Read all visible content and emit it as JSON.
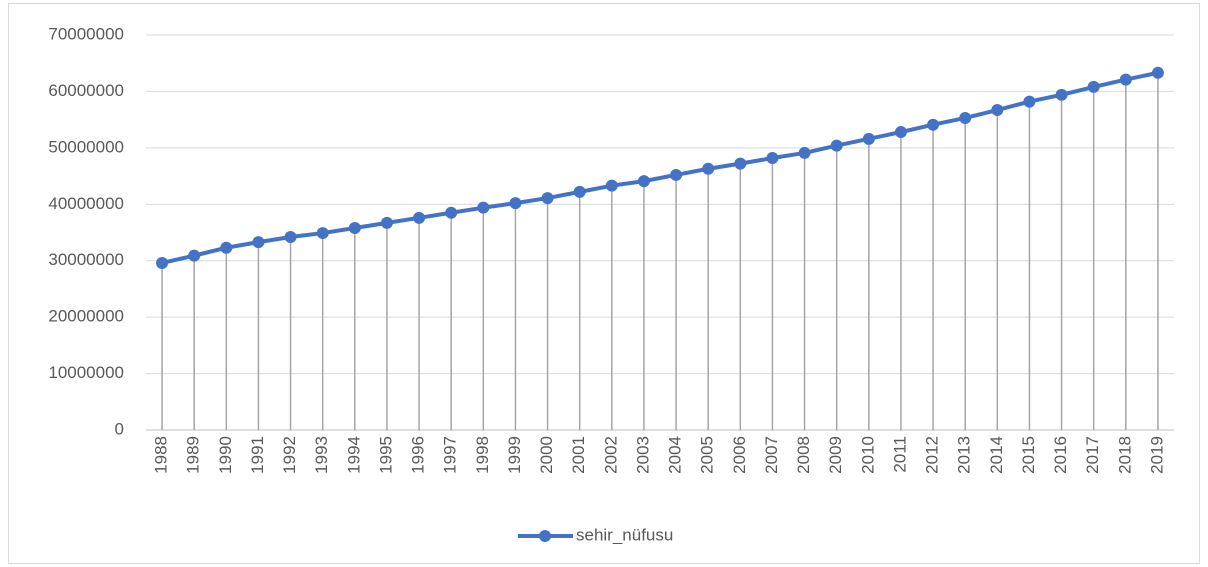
{
  "chart_data": {
    "type": "line",
    "categories": [
      "1988",
      "1989",
      "1990",
      "1991",
      "1992",
      "1993",
      "1994",
      "1995",
      "1996",
      "1997",
      "1998",
      "1999",
      "2000",
      "2001",
      "2002",
      "2003",
      "2004",
      "2005",
      "2006",
      "2007",
      "2008",
      "2009",
      "2010",
      "2011",
      "2012",
      "2013",
      "2014",
      "2015",
      "2016",
      "2017",
      "2018",
      "2019"
    ],
    "series": [
      {
        "name": "sehir_nüfusu",
        "color": "#4472c4",
        "values": [
          29600000,
          30900000,
          32300000,
          33300000,
          34200000,
          34900000,
          35800000,
          36700000,
          37600000,
          38500000,
          39400000,
          40200000,
          41100000,
          42200000,
          43300000,
          44100000,
          45200000,
          46300000,
          47200000,
          48200000,
          49100000,
          50400000,
          51600000,
          52800000,
          54100000,
          55300000,
          56700000,
          58200000,
          59400000,
          60800000,
          62100000,
          63300000
        ]
      }
    ],
    "ylim": [
      0,
      70000000
    ],
    "yticks": [
      0,
      10000000,
      20000000,
      30000000,
      40000000,
      50000000,
      60000000,
      70000000
    ],
    "grid": true,
    "drop_lines": true,
    "markers": true,
    "legend": "bottom"
  }
}
